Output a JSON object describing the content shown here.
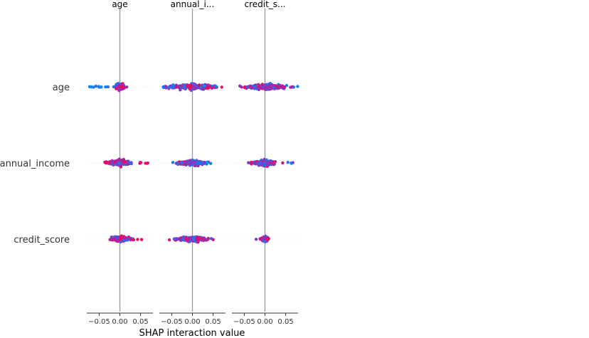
{
  "chart_data": {
    "type": "scatter",
    "subtype": "shap-interaction-beeswarm-matrix",
    "column_titles": [
      "age",
      "annual_i...",
      "credit_s..."
    ],
    "row_labels": [
      "age",
      "annual_income",
      "credit_score"
    ],
    "xlabel": "SHAP interaction value",
    "xticks": [
      -0.05,
      0.0,
      0.05
    ],
    "xtick_labels": [
      "−0.05",
      "0.00",
      "0.05"
    ],
    "xlim": [
      -0.08,
      0.08
    ],
    "colors": {
      "low": "#008bfb",
      "high": "#ff0052",
      "zero_line": "#999999",
      "row_line": "#cccccc",
      "axis": "#333333"
    },
    "cells": [
      [
        {
          "spread": 0.006,
          "halfwidth": 0.017,
          "tail_left": 0.075,
          "tail_right": 0.0,
          "tail_color": "low",
          "n": 150
        },
        {
          "spread": 0.028,
          "halfwidth": 0.013,
          "tail_left": 0.07,
          "tail_right": 0.07,
          "tail_color": "mixed",
          "n": 240
        },
        {
          "spread": 0.023,
          "halfwidth": 0.013,
          "tail_left": 0.07,
          "tail_right": 0.07,
          "tail_color": "mixed",
          "n": 220
        }
      ],
      [
        {
          "spread": 0.012,
          "halfwidth": 0.013,
          "tail_left": 0.04,
          "tail_right": 0.07,
          "tail_color": "high",
          "n": 210
        },
        {
          "spread": 0.016,
          "halfwidth": 0.012,
          "tail_left": 0.0,
          "tail_right": 0.05,
          "tail_color": "low",
          "n": 220
        },
        {
          "spread": 0.013,
          "halfwidth": 0.013,
          "tail_left": 0.045,
          "tail_right": 0.07,
          "tail_color": "mixed",
          "n": 200
        }
      ],
      [
        {
          "spread": 0.011,
          "halfwidth": 0.013,
          "tail_left": 0.0,
          "tail_right": 0.055,
          "tail_color": "high",
          "n": 180
        },
        {
          "spread": 0.018,
          "halfwidth": 0.012,
          "tail_left": 0.045,
          "tail_right": 0.03,
          "tail_color": "mixed",
          "n": 190
        },
        {
          "spread": 0.004,
          "halfwidth": 0.013,
          "tail_left": 0.025,
          "tail_right": 0.0,
          "tail_color": "mixed",
          "n": 110
        }
      ]
    ],
    "grid": false,
    "legend": "none"
  }
}
